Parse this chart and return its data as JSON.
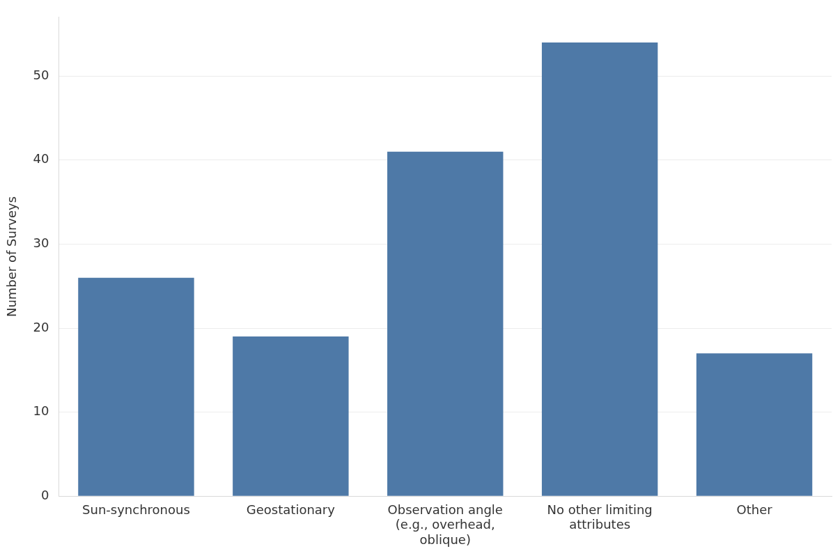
{
  "chart_data": {
    "type": "bar",
    "ylabel": "Number of Surveys",
    "categories": [
      "Sun-synchronous",
      "Geostationary",
      "Observation angle (e.g., overhead, oblique)",
      "No other limiting attributes",
      "Other"
    ],
    "values": [
      26,
      19,
      41,
      54,
      17
    ],
    "color": "#4e79a7",
    "ylim": [
      0,
      57
    ],
    "yticks": [
      0,
      10,
      20,
      30,
      40,
      50
    ],
    "grid": "y"
  }
}
